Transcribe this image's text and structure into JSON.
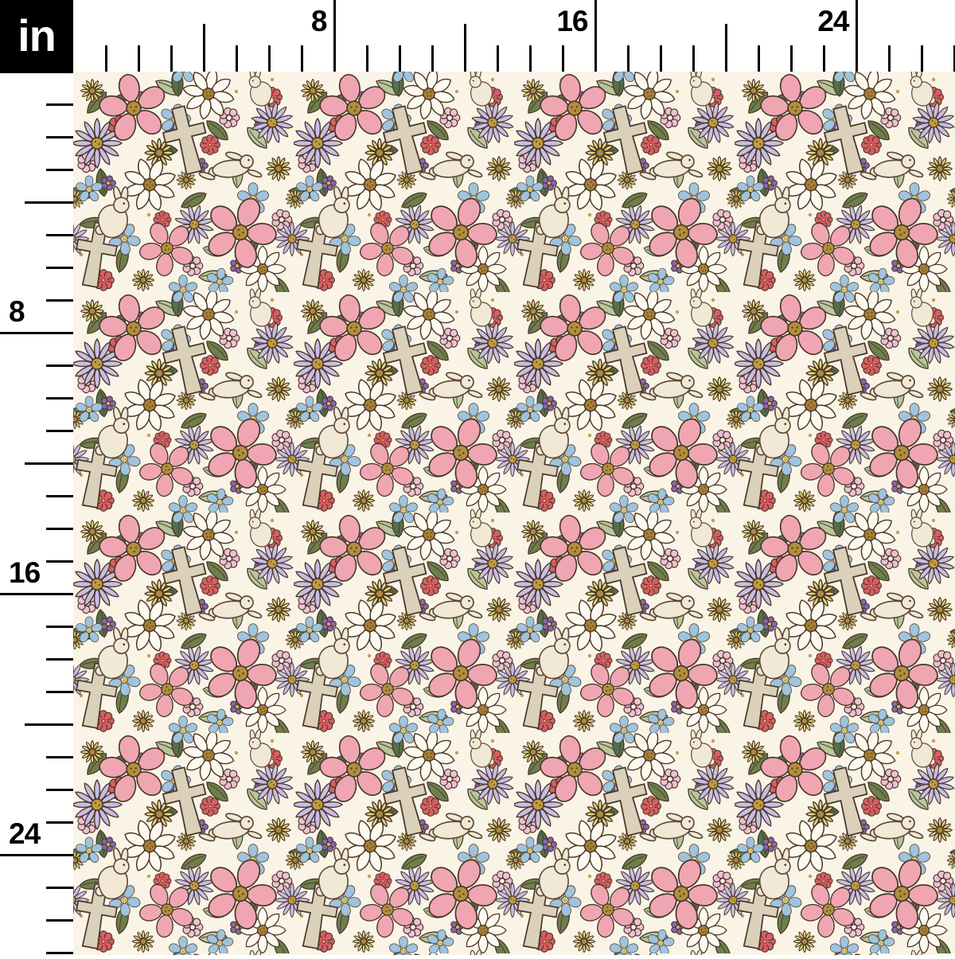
{
  "ruler": {
    "unit_label": "in",
    "top_labels": [
      "8",
      "16",
      "24"
    ],
    "left_labels": [
      "8",
      "16",
      "24"
    ],
    "tick_color": "#000000",
    "background_color": "#ffffff"
  },
  "swatch": {
    "motifs": [
      "pink-flower",
      "white-daisy",
      "lavender-daisy",
      "blue-flower",
      "yellow-aster",
      "red-zinnia",
      "pink-cluster-flower",
      "purple-flower",
      "green-leaf",
      "bunny",
      "cross"
    ],
    "background_color": "#FAF4E7",
    "outline_color": "#4A392B",
    "colors": {
      "pink_petal": "#F0A6B2",
      "white_petal": "#FDF9EF",
      "lavender_petal": "#C8BDE3",
      "blue_petal": "#9FC4DD",
      "yellow_petal": "#E9D77D",
      "red_bloom": "#D85E62",
      "light_pink_cluster": "#EFC0D4",
      "purple_bloom": "#8A64B0",
      "olive_leaf": "#6E7F4C",
      "forest_leaf": "#55704A",
      "sage_leaf": "#B7C79B",
      "bunny_cream": "#F2E8D6",
      "cross_tan": "#DBD0B9",
      "flower_center_gold": "#B28E3E"
    }
  }
}
